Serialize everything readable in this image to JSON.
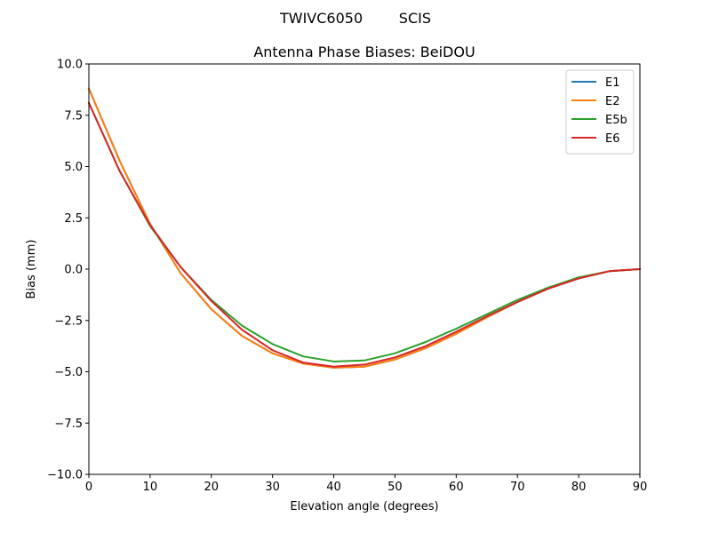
{
  "figure": {
    "suptitle": "TWIVC6050        SCIS"
  },
  "chart_data": {
    "type": "line",
    "title": "Antenna Phase Biases: BeiDOU",
    "xlabel": "Elevation angle (degrees)",
    "ylabel": "Bias (mm)",
    "xlim": [
      0,
      90
    ],
    "ylim": [
      -10,
      10
    ],
    "xticks": [
      0,
      10,
      20,
      30,
      40,
      50,
      60,
      70,
      80,
      90
    ],
    "xtick_labels": [
      "0",
      "10",
      "20",
      "30",
      "40",
      "50",
      "60",
      "70",
      "80",
      "90"
    ],
    "yticks": [
      10,
      7.5,
      5,
      2.5,
      0,
      -2.5,
      -5,
      -7.5,
      -10
    ],
    "ytick_labels": [
      "10.0",
      "7.5",
      "5.0",
      "2.5",
      "0.0",
      "−2.5",
      "−5.0",
      "−7.5",
      "−10.0"
    ],
    "grid": false,
    "legend_position": "top-right",
    "x": [
      0,
      5,
      10,
      15,
      20,
      25,
      30,
      35,
      40,
      45,
      50,
      55,
      60,
      65,
      70,
      75,
      80,
      85,
      90
    ],
    "series": [
      {
        "name": "E1",
        "color": "#1f77b4",
        "values": [
          8.8,
          5.3,
          2.2,
          -0.2,
          -1.95,
          -3.25,
          -4.1,
          -4.6,
          -4.8,
          -4.75,
          -4.4,
          -3.85,
          -3.15,
          -2.35,
          -1.6,
          -0.95,
          -0.45,
          -0.1,
          0.0
        ]
      },
      {
        "name": "E2",
        "color": "#ff7f0e",
        "values": [
          8.8,
          5.3,
          2.2,
          -0.2,
          -1.95,
          -3.25,
          -4.1,
          -4.6,
          -4.8,
          -4.75,
          -4.4,
          -3.85,
          -3.15,
          -2.35,
          -1.6,
          -0.95,
          -0.45,
          -0.1,
          0.0
        ]
      },
      {
        "name": "E5b",
        "color": "#2ca02c",
        "values": [
          8.1,
          4.8,
          2.1,
          0.1,
          -1.5,
          -2.75,
          -3.65,
          -4.25,
          -4.5,
          -4.45,
          -4.1,
          -3.55,
          -2.9,
          -2.2,
          -1.5,
          -0.9,
          -0.4,
          -0.1,
          0.0
        ]
      },
      {
        "name": "E6",
        "color": "#d62728",
        "values": [
          8.1,
          4.8,
          2.15,
          0.1,
          -1.55,
          -2.95,
          -3.95,
          -4.55,
          -4.75,
          -4.65,
          -4.3,
          -3.75,
          -3.05,
          -2.3,
          -1.6,
          -0.95,
          -0.45,
          -0.1,
          0.0
        ]
      }
    ]
  }
}
